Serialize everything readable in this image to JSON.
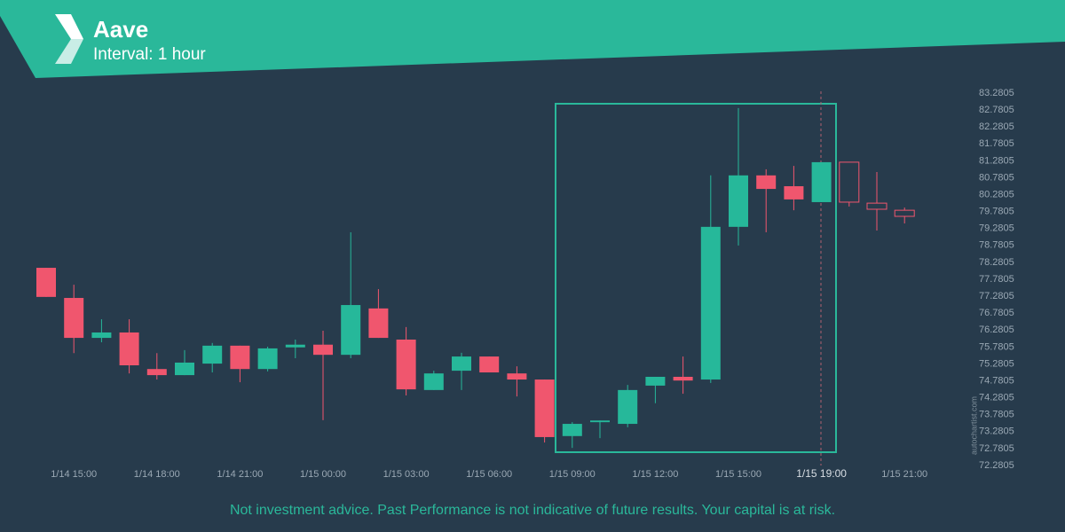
{
  "header": {
    "title": "Aave",
    "subtitle": "Interval: 1 hour"
  },
  "chart_data": {
    "type": "candlestick",
    "categories": [
      null,
      "1/14 15:00",
      null,
      null,
      "1/14 18:00",
      null,
      null,
      "1/14 21:00",
      null,
      null,
      "1/15 00:00",
      null,
      null,
      "1/15 03:00",
      null,
      null,
      "1/15 06:00",
      null,
      null,
      "1/15 09:00",
      null,
      null,
      "1/15 12:00",
      null,
      null,
      "1/15 15:00",
      null,
      null,
      "1/15 19:00",
      null,
      null,
      "1/15 21:00"
    ],
    "open": [
      78.12,
      77.23,
      76.05,
      76.21,
      75.13,
      74.95,
      75.29,
      75.82,
      75.13,
      75.77,
      75.85,
      75.55,
      76.92,
      76.0,
      74.51,
      75.08,
      75.5,
      75.0,
      74.82,
      73.15,
      73.56,
      73.51,
      74.64,
      74.9,
      74.82,
      79.33,
      80.85,
      80.53,
      80.06,
      81.24,
      80.03,
      79.82
    ],
    "high": [
      78.12,
      77.62,
      76.6,
      76.6,
      75.6,
      75.69,
      75.9,
      75.82,
      75.79,
      76.0,
      76.26,
      79.17,
      77.49,
      76.37,
      75.08,
      75.61,
      75.5,
      75.21,
      74.82,
      73.56,
      73.61,
      74.66,
      74.9,
      75.5,
      80.85,
      82.84,
      81.03,
      81.13,
      81.24,
      81.24,
      80.95,
      79.9
    ],
    "low": [
      77.26,
      75.6,
      75.92,
      75.0,
      74.82,
      74.95,
      75.03,
      74.74,
      75.06,
      75.45,
      73.62,
      75.45,
      76.05,
      74.35,
      74.51,
      74.51,
      75.03,
      74.32,
      72.96,
      72.8,
      73.09,
      73.41,
      74.12,
      74.4,
      74.72,
      78.78,
      79.17,
      79.82,
      80.06,
      79.93,
      79.22,
      79.43
    ],
    "close": [
      77.26,
      76.05,
      76.21,
      75.24,
      74.95,
      75.32,
      75.82,
      75.13,
      75.74,
      75.85,
      75.55,
      77.02,
      76.05,
      74.53,
      75.0,
      75.5,
      75.03,
      74.82,
      73.12,
      73.51,
      73.61,
      74.51,
      74.9,
      74.79,
      79.33,
      80.85,
      80.45,
      80.14,
      81.24,
      80.06,
      79.85,
      79.64
    ],
    "hollow": [
      false,
      false,
      false,
      false,
      false,
      false,
      false,
      false,
      false,
      false,
      false,
      false,
      false,
      false,
      false,
      false,
      false,
      false,
      false,
      false,
      false,
      false,
      false,
      false,
      false,
      false,
      false,
      false,
      false,
      true,
      true,
      true
    ],
    "up_color": "#26b89a",
    "down_color": "#f0566e",
    "ylim": [
      72.2805,
      83.2805
    ],
    "yticks": [
      72.2805,
      72.7805,
      73.2805,
      73.7805,
      74.2805,
      74.7805,
      75.2805,
      75.7805,
      76.2805,
      76.7805,
      77.2805,
      77.7805,
      78.2805,
      78.7805,
      79.2805,
      79.7805,
      80.2805,
      80.7805,
      81.2805,
      81.7805,
      82.2805,
      82.7805,
      83.2805
    ],
    "grid": false
  },
  "watermark": "autochartist.com",
  "footer": "Not investment advice. Past Performance is not indicative of future results. Your capital is at risk."
}
